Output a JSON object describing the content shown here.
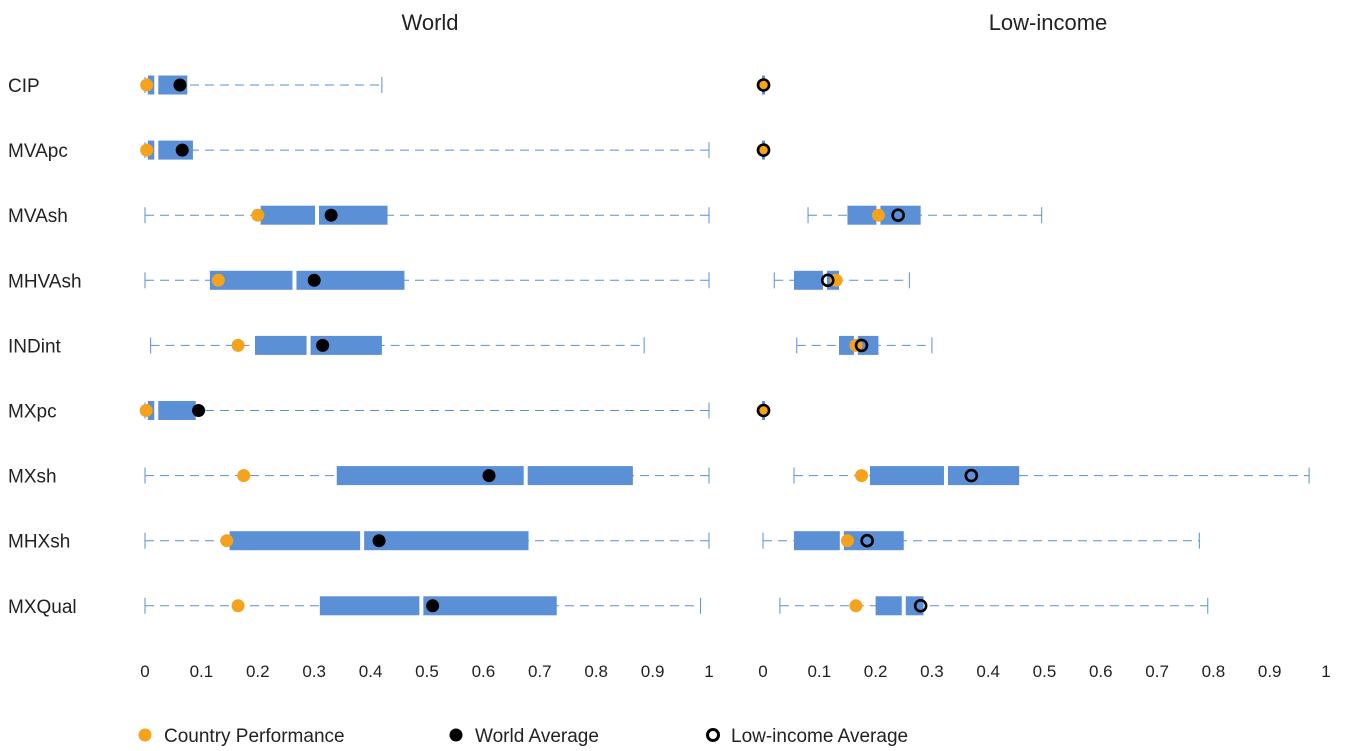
{
  "chart_data": {
    "type": "boxplot",
    "categories": [
      "CIP",
      "MVApc",
      "MVAsh",
      "MHVAsh",
      "INDint",
      "MXpc",
      "MXsh",
      "MHXsh",
      "MXQual"
    ],
    "xlim": [
      0,
      1
    ],
    "xticks": [
      "0",
      "0.1",
      "0.2",
      "0.3",
      "0.4",
      "0.5",
      "0.6",
      "0.7",
      "0.8",
      "0.9",
      "1"
    ],
    "grid": false,
    "legend_position": "bottom",
    "colors": {
      "box": "#5b8fd6",
      "whisker": "#5b8fd6",
      "country": "#f5a21d",
      "world_avg": "#000000",
      "lowincome_avg": "#000000"
    },
    "legend": {
      "country": "Country Performance",
      "world_avg": "World Average",
      "lowincome_avg": "Low-income Average"
    },
    "panels": [
      {
        "title": "World",
        "avg_style": "filled",
        "rows": [
          {
            "min": 0.0,
            "q1": 0.005,
            "median": 0.02,
            "q3": 0.075,
            "max": 0.42,
            "country": 0.003,
            "avg": 0.062
          },
          {
            "min": 0.0,
            "q1": 0.005,
            "median": 0.02,
            "q3": 0.085,
            "max": 1.0,
            "country": 0.003,
            "avg": 0.066
          },
          {
            "min": 0.0,
            "q1": 0.205,
            "median": 0.305,
            "q3": 0.43,
            "max": 1.0,
            "country": 0.2,
            "avg": 0.33
          },
          {
            "min": 0.0,
            "q1": 0.115,
            "median": 0.265,
            "q3": 0.46,
            "max": 1.0,
            "country": 0.13,
            "avg": 0.3
          },
          {
            "min": 0.01,
            "q1": 0.195,
            "median": 0.29,
            "q3": 0.42,
            "max": 0.885,
            "country": 0.165,
            "avg": 0.315
          },
          {
            "min": 0.0,
            "q1": 0.005,
            "median": 0.02,
            "q3": 0.09,
            "max": 1.0,
            "country": 0.002,
            "avg": 0.095
          },
          {
            "min": 0.0,
            "q1": 0.34,
            "median": 0.675,
            "q3": 0.865,
            "max": 1.0,
            "country": 0.175,
            "avg": 0.61
          },
          {
            "min": 0.0,
            "q1": 0.15,
            "median": 0.385,
            "q3": 0.68,
            "max": 1.0,
            "country": 0.145,
            "avg": 0.415
          },
          {
            "min": 0.0,
            "q1": 0.31,
            "median": 0.49,
            "q3": 0.73,
            "max": 0.985,
            "country": 0.165,
            "avg": 0.51
          }
        ]
      },
      {
        "title": "Low-income",
        "avg_style": "hollow",
        "rows": [
          {
            "min": 0.0,
            "q1": 0.0,
            "median": 0.001,
            "q3": 0.003,
            "max": 0.003,
            "country": 0.0,
            "avg": 0.001
          },
          {
            "min": 0.0,
            "q1": 0.0,
            "median": 0.001,
            "q3": 0.003,
            "max": 0.003,
            "country": 0.0,
            "avg": 0.001
          },
          {
            "min": 0.08,
            "q1": 0.15,
            "median": 0.205,
            "q3": 0.28,
            "max": 0.495,
            "country": 0.205,
            "avg": 0.24
          },
          {
            "min": 0.02,
            "q1": 0.055,
            "median": 0.11,
            "q3": 0.135,
            "max": 0.26,
            "country": 0.13,
            "avg": 0.115
          },
          {
            "min": 0.06,
            "q1": 0.135,
            "median": 0.165,
            "q3": 0.205,
            "max": 0.3,
            "country": 0.165,
            "avg": 0.175
          },
          {
            "min": 0.0,
            "q1": 0.0,
            "median": 0.001,
            "q3": 0.003,
            "max": 0.003,
            "country": 0.0,
            "avg": 0.001
          },
          {
            "min": 0.055,
            "q1": 0.19,
            "median": 0.325,
            "q3": 0.455,
            "max": 0.97,
            "country": 0.175,
            "avg": 0.37
          },
          {
            "min": 0.0,
            "q1": 0.055,
            "median": 0.14,
            "q3": 0.25,
            "max": 0.775,
            "country": 0.15,
            "avg": 0.185
          },
          {
            "min": 0.03,
            "q1": 0.2,
            "median": 0.25,
            "q3": 0.285,
            "max": 0.79,
            "country": 0.165,
            "avg": 0.28
          }
        ]
      }
    ]
  }
}
